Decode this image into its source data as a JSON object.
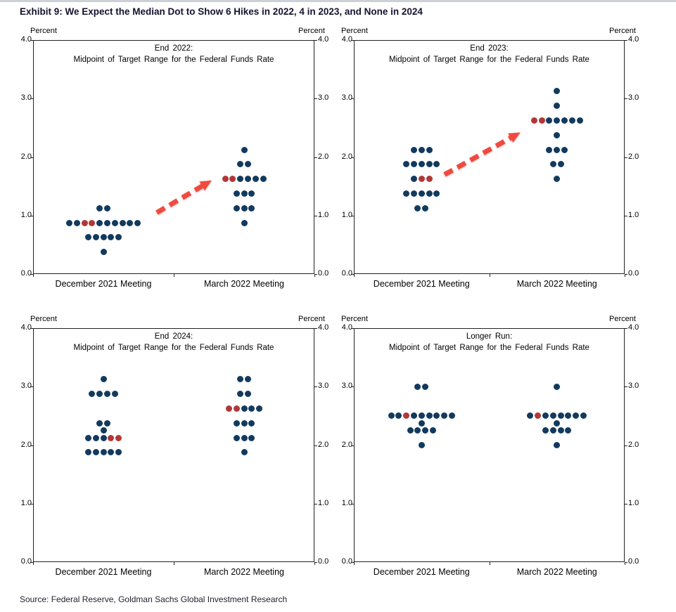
{
  "page_title": "Exhibit 9: We Expect the Median Dot to Show 6 Hikes in 2022, 4 in 2023, and None in 2024",
  "source": "Source: Federal Reserve, Goldman Sachs Global Investment Research",
  "axis_unit_label": "Percent",
  "y_ticks": [
    "4.0",
    "3.0",
    "2.0",
    "1.0",
    "0.0"
  ],
  "colors": {
    "dot_navy": "#123a5e",
    "dot_red": "#b23737",
    "arrow_red": "#f04a40",
    "frame": "#222222",
    "title_color": "#13132e"
  },
  "meetings": [
    "December 2021 Meeting",
    "March 2022 Meeting"
  ],
  "chart_data": [
    {
      "type": "scatter",
      "title": "End 2022:",
      "subtitle": "Midpoint of Target Range for the Federal Funds Rate",
      "ylabel": "Percent",
      "ylim": [
        0.0,
        4.0
      ],
      "categories": [
        "December 2021 Meeting",
        "March 2022 Meeting"
      ],
      "series": [
        {
          "category": "December 2021 Meeting",
          "rows": [
            {
              "value": 1.125,
              "dots": "nn"
            },
            {
              "value": 0.875,
              "dots": "nnrrnnnnnn"
            },
            {
              "value": 0.625,
              "dots": "nnnnn"
            },
            {
              "value": 0.375,
              "dots": "n"
            }
          ]
        },
        {
          "category": "March 2022 Meeting",
          "rows": [
            {
              "value": 2.125,
              "dots": "n"
            },
            {
              "value": 1.875,
              "dots": "nn"
            },
            {
              "value": 1.625,
              "dots": "rrnnnn"
            },
            {
              "value": 1.375,
              "dots": "nnn"
            },
            {
              "value": 1.125,
              "dots": "nnn"
            },
            {
              "value": 0.875,
              "dots": "n"
            }
          ]
        }
      ],
      "arrow": {
        "from": [
          0.44,
          1.05
        ],
        "to": [
          0.635,
          1.6
        ]
      }
    },
    {
      "type": "scatter",
      "title": "End 2023:",
      "subtitle": "Midpoint of Target Range for the Federal Funds Rate",
      "ylabel": "Percent",
      "ylim": [
        0.0,
        4.0
      ],
      "categories": [
        "December 2021 Meeting",
        "March 2022 Meeting"
      ],
      "series": [
        {
          "category": "December 2021 Meeting",
          "rows": [
            {
              "value": 2.125,
              "dots": "nnn"
            },
            {
              "value": 1.875,
              "dots": "nnnnn"
            },
            {
              "value": 1.625,
              "dots": "nrr"
            },
            {
              "value": 1.375,
              "dots": "nnnnn"
            },
            {
              "value": 1.125,
              "dots": "nn"
            }
          ]
        },
        {
          "category": "March 2022 Meeting",
          "rows": [
            {
              "value": 3.125,
              "dots": "n"
            },
            {
              "value": 2.875,
              "dots": "n"
            },
            {
              "value": 2.625,
              "dots": "rrnnnnn"
            },
            {
              "value": 2.375,
              "dots": "n"
            },
            {
              "value": 2.125,
              "dots": "nnn"
            },
            {
              "value": 1.875,
              "dots": "nn"
            },
            {
              "value": 1.625,
              "dots": "n"
            }
          ]
        }
      ],
      "arrow": {
        "from": [
          0.335,
          1.7
        ],
        "to": [
          0.615,
          2.42
        ]
      }
    },
    {
      "type": "scatter",
      "title": "End 2024:",
      "subtitle": "Midpoint of Target Range for the Federal Funds Rate",
      "ylabel": "Percent",
      "ylim": [
        0.0,
        4.0
      ],
      "categories": [
        "December 2021 Meeting",
        "March 2022 Meeting"
      ],
      "series": [
        {
          "category": "December 2021 Meeting",
          "rows": [
            {
              "value": 3.125,
              "dots": "n"
            },
            {
              "value": 2.875,
              "dots": "nnnn"
            },
            {
              "value": 2.375,
              "dots": "nn"
            },
            {
              "value": 2.25,
              "dots": "n"
            },
            {
              "value": 2.125,
              "dots": "nnnrr"
            },
            {
              "value": 1.875,
              "dots": "nnnnn"
            }
          ]
        },
        {
          "category": "March 2022 Meeting",
          "rows": [
            {
              "value": 3.125,
              "dots": "nn"
            },
            {
              "value": 2.875,
              "dots": "nn"
            },
            {
              "value": 2.625,
              "dots": "rrnnn"
            },
            {
              "value": 2.375,
              "dots": "nnn"
            },
            {
              "value": 2.125,
              "dots": "nnn"
            },
            {
              "value": 1.875,
              "dots": "n"
            }
          ]
        }
      ],
      "arrow": null
    },
    {
      "type": "scatter",
      "title": "Longer Run:",
      "subtitle": "Midpoint of Target Range for the Federal Funds Rate",
      "ylabel": "Percent",
      "ylim": [
        0.0,
        4.0
      ],
      "categories": [
        "December 2021 Meeting",
        "March 2022 Meeting"
      ],
      "series": [
        {
          "category": "December 2021 Meeting",
          "rows": [
            {
              "value": 3.0,
              "dots": "nn"
            },
            {
              "value": 2.5,
              "dots": "nnrnnnnnn"
            },
            {
              "value": 2.375,
              "dots": "n"
            },
            {
              "value": 2.25,
              "dots": "nnnn"
            },
            {
              "value": 2.0,
              "dots": "n"
            }
          ]
        },
        {
          "category": "March 2022 Meeting",
          "rows": [
            {
              "value": 3.0,
              "dots": "n"
            },
            {
              "value": 2.5,
              "dots": "nrnnnnnn"
            },
            {
              "value": 2.375,
              "dots": "n"
            },
            {
              "value": 2.25,
              "dots": "nnnn"
            },
            {
              "value": 2.0,
              "dots": "n"
            }
          ]
        }
      ],
      "arrow": null
    }
  ]
}
